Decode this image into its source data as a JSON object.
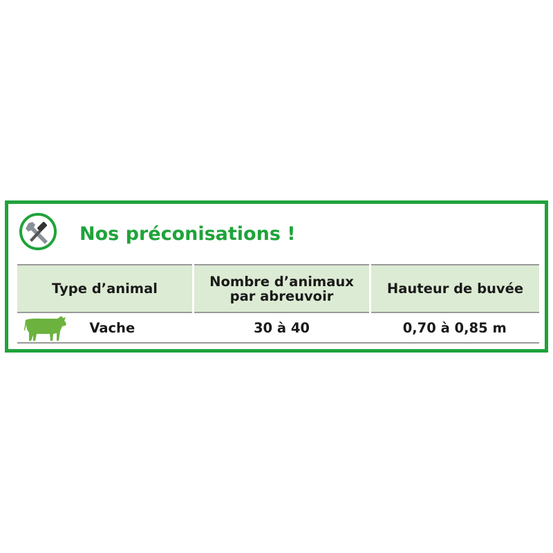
{
  "title": "Nos préconisations !",
  "icons": {
    "logo": "tools-icon",
    "animal": "cow-icon"
  },
  "colors": {
    "accent": "#1fa33a",
    "header_bg": "#dcebd3",
    "cow": "#6bb33e"
  },
  "table": {
    "headers": [
      {
        "line1": "Type d’animal",
        "line2": ""
      },
      {
        "line1": "Nombre d’animaux",
        "line2": "par abreuvoir"
      },
      {
        "line1": "Hauteur de buvée",
        "line2": ""
      }
    ],
    "rows": [
      {
        "animal": "Vache",
        "count": "30 à 40",
        "height": "0,70 à 0,85 m"
      }
    ]
  }
}
